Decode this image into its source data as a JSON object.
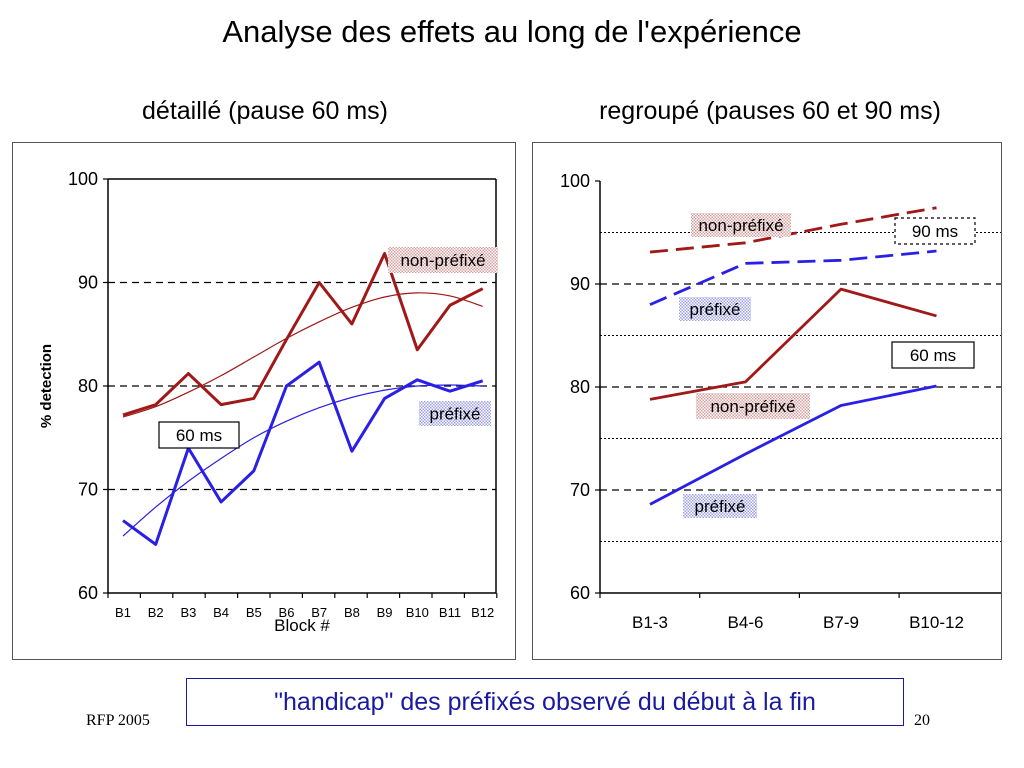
{
  "slide": {
    "title": "Analyse des effets au long de l'expérience",
    "footer_left": "RFP 2005",
    "page_number": "20",
    "callout": "\"handicap\" des préfixés observé du début à la fin"
  },
  "colors": {
    "non_prefixe": "#a01818",
    "prefixe": "#2a1fe6",
    "callout": "#1a1aa0"
  },
  "chart_data": [
    {
      "type": "line",
      "title": "détaillé (pause 60 ms)",
      "xlabel": "Block #",
      "ylabel": "% detection",
      "categories": [
        "B1",
        "B2",
        "B3",
        "B4",
        "B5",
        "B6",
        "B7",
        "B8",
        "B9",
        "B10",
        "B11",
        "B12"
      ],
      "ylim": [
        60,
        100
      ],
      "yticks": [
        60,
        70,
        80,
        90,
        100
      ],
      "gridlines": [
        70,
        80,
        90
      ],
      "series": [
        {
          "name": "non-préfixé",
          "color": "#a01818",
          "width": 3,
          "values": [
            77.2,
            78.2,
            81.2,
            78.2,
            78.8,
            84.5,
            90.0,
            86.0,
            92.8,
            83.5,
            87.8,
            89.4
          ]
        },
        {
          "name": "préfixé",
          "color": "#2a1fe6",
          "width": 3,
          "values": [
            67.0,
            64.7,
            74.0,
            68.8,
            71.8,
            80.0,
            82.3,
            73.7,
            78.8,
            80.6,
            79.5,
            80.5
          ]
        },
        {
          "kind": "trend",
          "color": "#a01818",
          "width": 1.2,
          "values": [
            77.0,
            78.0,
            79.4,
            81.0,
            82.8,
            84.6,
            86.2,
            87.6,
            88.6,
            89.0,
            88.7,
            87.7
          ]
        },
        {
          "kind": "trend",
          "color": "#2a1fe6",
          "width": 1.2,
          "values": [
            65.5,
            68.3,
            70.8,
            73.0,
            75.0,
            76.6,
            77.9,
            78.9,
            79.6,
            80.0,
            80.1,
            80.0
          ]
        }
      ],
      "annotations": [
        {
          "text": "non-préfixé",
          "style": "hatch",
          "hatch_color": "#d9a0a0"
        },
        {
          "text": "préfixé",
          "style": "hatch",
          "hatch_color": "#a0a0e6"
        },
        {
          "text": "60 ms",
          "style": "box"
        }
      ]
    },
    {
      "type": "line",
      "title": "regroupé (pauses 60 et 90 ms)",
      "categories": [
        "B1-3",
        "B4-6",
        "B7-9",
        "B10-12"
      ],
      "ylim": [
        60,
        100
      ],
      "yticks": [
        60,
        70,
        80,
        90,
        100
      ],
      "gridlines": [
        70,
        80,
        90
      ],
      "minor_gridlines": [
        65,
        75,
        85,
        95
      ],
      "series": [
        {
          "group": "90 ms",
          "name": "non-préfixé",
          "color": "#a01818",
          "dashed": true,
          "values": [
            93.1,
            94.0,
            95.8,
            97.4
          ]
        },
        {
          "group": "90 ms",
          "name": "préfixé",
          "color": "#2a1fe6",
          "dashed": true,
          "values": [
            88.0,
            92.0,
            92.3,
            93.2
          ]
        },
        {
          "group": "60 ms",
          "name": "non-préfixé",
          "color": "#a01818",
          "dashed": false,
          "values": [
            78.8,
            80.5,
            89.5,
            86.9
          ]
        },
        {
          "group": "60 ms",
          "name": "préfixé",
          "color": "#2a1fe6",
          "dashed": false,
          "values": [
            68.6,
            73.5,
            78.2,
            80.1
          ]
        }
      ],
      "annotations": [
        {
          "text": "non-préfixé",
          "style": "hatch",
          "hatch_color": "#d9a0a0"
        },
        {
          "text": "90 ms",
          "style": "dashed-box"
        },
        {
          "text": "préfixé",
          "style": "hatch",
          "hatch_color": "#a0a0e6"
        },
        {
          "text": "60 ms",
          "style": "box"
        },
        {
          "text": "non-préfixé",
          "style": "hatch",
          "hatch_color": "#d9a0a0"
        },
        {
          "text": "préfixé",
          "style": "hatch",
          "hatch_color": "#a0a0e6"
        }
      ]
    }
  ]
}
